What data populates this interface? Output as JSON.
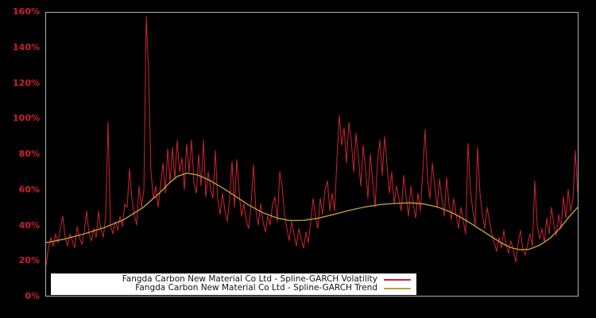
{
  "window": {
    "background": "#000000",
    "frame_color": "#b0b0b0"
  },
  "chart_data": {
    "type": "line",
    "title": "",
    "xlabel": "",
    "ylabel": "",
    "x_tick_labels_visible": false,
    "x_axis_note": "time axis, no tick labels shown",
    "ylim": [
      0,
      160
    ],
    "y_unit": "%",
    "grid": false,
    "plot_background": "#000000",
    "axis_tick_color": "#cc1f2e",
    "legend_position": "bottom-left",
    "legend_background": "#ffffff",
    "legend_text_color": "#111111",
    "yticks": [
      {
        "label": "0%",
        "value": 0
      },
      {
        "label": "20%",
        "value": 20
      },
      {
        "label": "40%",
        "value": 40
      },
      {
        "label": "60%",
        "value": 60
      },
      {
        "label": "80%",
        "value": 80
      },
      {
        "label": "100%",
        "value": 100
      },
      {
        "label": "120%",
        "value": 120
      },
      {
        "label": "140%",
        "value": 140
      },
      {
        "label": "160%",
        "value": 160
      }
    ],
    "series": [
      {
        "name": "Fangda Carbon New Material Co Ltd - Spline-GARCH Volatility",
        "color": "#ce2433",
        "stroke_width": 1,
        "values_percent_uniformly_sampled": [
          17,
          27,
          33,
          28,
          35,
          30,
          38,
          45,
          33,
          28,
          35,
          31,
          27,
          39,
          33,
          29,
          36,
          48,
          35,
          31,
          38,
          33,
          48,
          37,
          33,
          45,
          98,
          40,
          35,
          42,
          37,
          45,
          39,
          52,
          50,
          72,
          55,
          46,
          40,
          62,
          50,
          60,
          158,
          125,
          70,
          55,
          62,
          50,
          62,
          75,
          58,
          83,
          64,
          84,
          66,
          88,
          70,
          78,
          60,
          86,
          70,
          88,
          64,
          58,
          80,
          62,
          88,
          56,
          70,
          60,
          55,
          82,
          55,
          46,
          58,
          48,
          42,
          55,
          76,
          50,
          77,
          58,
          45,
          52,
          42,
          38,
          52,
          74,
          48,
          40,
          52,
          42,
          36,
          45,
          40,
          52,
          56,
          42,
          70,
          62,
          46,
          38,
          31,
          42,
          35,
          28,
          38,
          32,
          27,
          36,
          30,
          42,
          55,
          45,
          38,
          55,
          46,
          60,
          65,
          48,
          58,
          48,
          77,
          102,
          85,
          95,
          75,
          98,
          88,
          70,
          92,
          78,
          62,
          85,
          72,
          55,
          80,
          65,
          50,
          75,
          88,
          68,
          90,
          74,
          58,
          70,
          52,
          62,
          55,
          48,
          68,
          56,
          45,
          62,
          52,
          44,
          58,
          48,
          70,
          94,
          66,
          55,
          75,
          62,
          50,
          66,
          55,
          45,
          67,
          52,
          43,
          55,
          46,
          38,
          50,
          42,
          35,
          86,
          60,
          48,
          40,
          84,
          58,
          46,
          38,
          50,
          42,
          35,
          30,
          25,
          33,
          27,
          37,
          29,
          24,
          31,
          26,
          19,
          30,
          37,
          26,
          23,
          29,
          35,
          28,
          65,
          40,
          32,
          38,
          30,
          44,
          35,
          50,
          40,
          34,
          46,
          38,
          56,
          44,
          60,
          48,
          55,
          82,
          58
        ]
      },
      {
        "name": "Fangda Carbon New Material Co Ltd - Spline-GARCH Trend",
        "color": "#c0a039",
        "stroke_width": 1.4,
        "points_frac_percent": [
          [
            0.0,
            30
          ],
          [
            0.034,
            32
          ],
          [
            0.072,
            35
          ],
          [
            0.109,
            38.5
          ],
          [
            0.146,
            43
          ],
          [
            0.183,
            50
          ],
          [
            0.213,
            58
          ],
          [
            0.231,
            63.5
          ],
          [
            0.247,
            67.5
          ],
          [
            0.265,
            69.3
          ],
          [
            0.285,
            68.3
          ],
          [
            0.306,
            65.5
          ],
          [
            0.329,
            61.5
          ],
          [
            0.355,
            56.5
          ],
          [
            0.38,
            51.5
          ],
          [
            0.407,
            47
          ],
          [
            0.434,
            44
          ],
          [
            0.459,
            42.5
          ],
          [
            0.484,
            42.6
          ],
          [
            0.511,
            43.8
          ],
          [
            0.541,
            46
          ],
          [
            0.571,
            48.3
          ],
          [
            0.601,
            50.3
          ],
          [
            0.63,
            51.6
          ],
          [
            0.66,
            52.3
          ],
          [
            0.687,
            52.5
          ],
          [
            0.712,
            51.8
          ],
          [
            0.738,
            50
          ],
          [
            0.762,
            47.2
          ],
          [
            0.785,
            43.5
          ],
          [
            0.809,
            39
          ],
          [
            0.832,
            34.5
          ],
          [
            0.854,
            30.3
          ],
          [
            0.873,
            27.3
          ],
          [
            0.891,
            26
          ],
          [
            0.909,
            26.3
          ],
          [
            0.928,
            28.5
          ],
          [
            0.948,
            32.5
          ],
          [
            0.966,
            38
          ],
          [
            0.982,
            44
          ],
          [
            1.0,
            50
          ]
        ]
      }
    ]
  }
}
